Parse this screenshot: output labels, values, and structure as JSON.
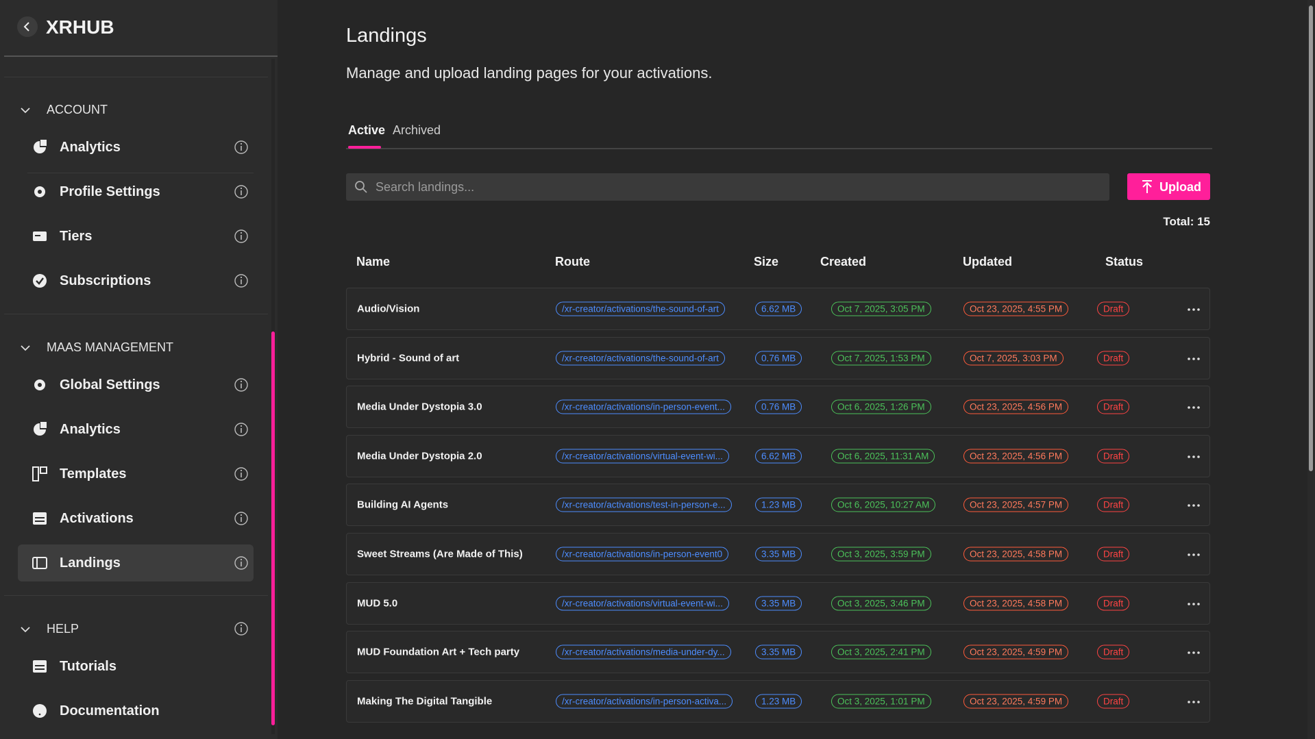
{
  "sidebar": {
    "brand": "XRHUB",
    "sections": [
      {
        "title": "ACCOUNT",
        "items": [
          "Analytics",
          "Profile Settings",
          "Tiers",
          "Subscriptions"
        ]
      },
      {
        "title": "MAAS MANAGEMENT",
        "items": [
          "Global Settings",
          "Analytics",
          "Templates",
          "Activations",
          "Landings"
        ]
      },
      {
        "title": "HELP",
        "items": [
          "Tutorials",
          "Documentation"
        ]
      }
    ]
  },
  "main": {
    "title": "Landings",
    "subtitle": "Manage and upload landing pages for your activations.",
    "tabs": [
      "Active",
      "Archived"
    ],
    "search_placeholder": "Search landings...",
    "upload": "Upload",
    "total": "Total: 15",
    "table": {
      "headers": [
        "Name",
        "Route",
        "Size",
        "Created",
        "Updated",
        "Status"
      ],
      "rows": [
        [
          "Audio/Vision",
          "/xr-creator/activations/the-sound-of-art",
          "6.62 MB",
          "Oct 7, 2025, 3:05 PM",
          "Oct 23, 2025, 4:55 PM",
          "Draft"
        ],
        [
          "Hybrid - Sound of art",
          "/xr-creator/activations/the-sound-of-art",
          "0.76 MB",
          "Oct 7, 2025, 1:53 PM",
          "Oct 7, 2025, 3:03 PM",
          "Draft"
        ],
        [
          "Media Under Dystopia 3.0",
          "/xr-creator/activations/in-person-event...",
          "0.76 MB",
          "Oct 6, 2025, 1:26 PM",
          "Oct 23, 2025, 4:56 PM",
          "Draft"
        ],
        [
          "Media Under Dystopia 2.0",
          "/xr-creator/activations/virtual-event-wi...",
          "6.62 MB",
          "Oct 6, 2025, 11:31 AM",
          "Oct 23, 2025, 4:56 PM",
          "Draft"
        ],
        [
          "Building AI Agents",
          "/xr-creator/activations/test-in-person-e...",
          "1.23 MB",
          "Oct 6, 2025, 10:27 AM",
          "Oct 23, 2025, 4:57 PM",
          "Draft"
        ],
        [
          "Sweet Streams (Are Made of This)",
          "/xr-creator/activations/in-person-event0",
          "3.35 MB",
          "Oct 3, 2025, 3:59 PM",
          "Oct 23, 2025, 4:58 PM",
          "Draft"
        ],
        [
          "MUD 5.0",
          "/xr-creator/activations/virtual-event-wi...",
          "3.35 MB",
          "Oct 3, 2025, 3:46 PM",
          "Oct 23, 2025, 4:58 PM",
          "Draft"
        ],
        [
          "MUD Foundation Art + Tech party",
          "/xr-creator/activations/media-under-dy...",
          "3.35 MB",
          "Oct 3, 2025, 2:41 PM",
          "Oct 23, 2025, 4:59 PM",
          "Draft"
        ],
        [
          "Making The Digital Tangible",
          "/xr-creator/activations/in-person-activa...",
          "1.23 MB",
          "Oct 3, 2025, 1:01 PM",
          "Oct 23, 2025, 4:59 PM",
          "Draft"
        ]
      ]
    }
  }
}
